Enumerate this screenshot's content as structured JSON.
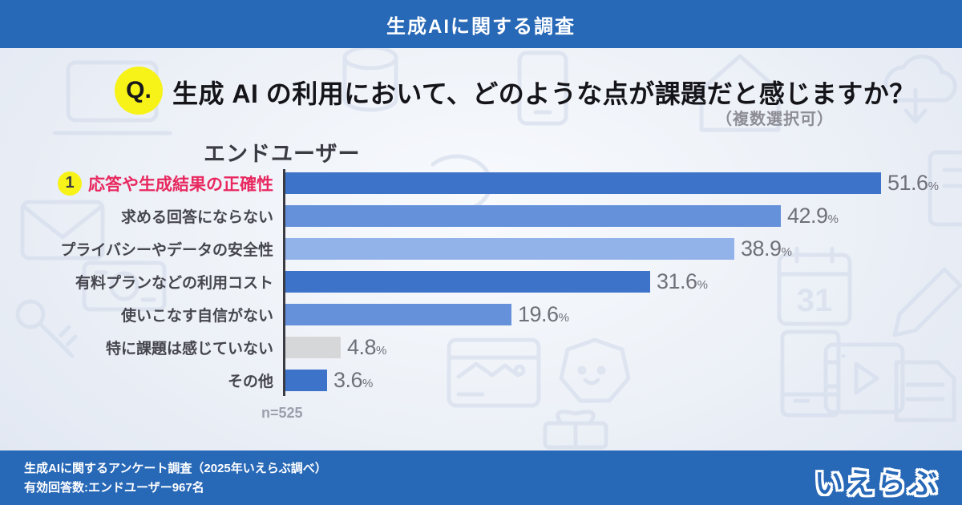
{
  "header": {
    "title": "生成AIに関する調査"
  },
  "question": {
    "badge": "Q.",
    "text": "生成 AI の利用において、どのような点が課題だと感じますか？",
    "note": "（複数選択可）"
  },
  "chart_data": {
    "type": "bar",
    "orientation": "horizontal",
    "title": "エンドユーザー",
    "unit": "%",
    "categories": [
      "応答や生成結果の正確性",
      "求める回答にならない",
      "プライバシーやデータの安全性",
      "有料プランなどの利用コスト",
      "使いこなす自信がない",
      "特に課題は感じていない",
      "その他"
    ],
    "values": [
      51.6,
      42.9,
      38.9,
      31.6,
      19.6,
      4.8,
      3.6
    ],
    "bar_colors": [
      "#3d74ca",
      "#6591db",
      "#92b2ea",
      "#3d74ca",
      "#6591db",
      "#d6d7d9",
      "#3d74ca"
    ],
    "highlight": {
      "index": 0,
      "badge": "1",
      "label_color": "#e8285f"
    },
    "sample_size": "n=525",
    "xlim": [
      0,
      55
    ],
    "value_label_color": "#70707a",
    "grid": false,
    "legend": false
  },
  "background": {
    "calendar_text": "31"
  },
  "footer": {
    "line1": "生成AIに関するアンケート調査（2025年いえらぶ調べ）",
    "line2": "有効回答数:エンドユーザー967名",
    "logo": "いえらぶ"
  },
  "colors": {
    "brand_blue": "#2768b7",
    "accent_yellow": "#f7f218",
    "highlight_pink": "#e8285f",
    "axis": "#3b3b43"
  }
}
